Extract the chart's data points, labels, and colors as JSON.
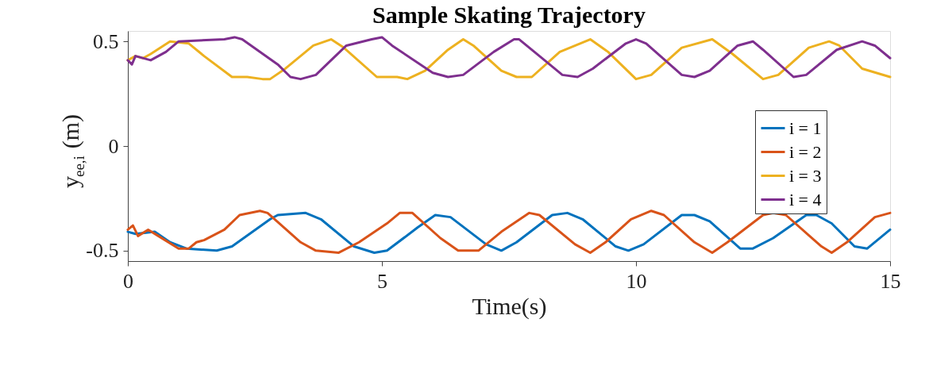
{
  "chart_data": {
    "type": "line",
    "title": "Sample Skating Trajectory",
    "xlabel": "Time(s)",
    "ylabel": "y$_{ee,i}$ (m)",
    "xlim": [
      0,
      15
    ],
    "xticks": [
      0,
      5,
      10,
      15
    ],
    "ylim": [
      -0.55,
      0.55
    ],
    "yticks": [
      -0.5,
      0,
      0.5
    ],
    "grid": false,
    "legend": "right",
    "line_style": "solid",
    "marker": "none",
    "series": [
      {
        "name": "i = 1",
        "color": "#0072bd",
        "x": [
          0,
          0.15,
          0.53,
          0.83,
          1.15,
          1.75,
          2.05,
          2.8,
          2.95,
          3.5,
          3.8,
          4.45,
          4.85,
          5.1,
          5.7,
          6.05,
          6.35,
          7.05,
          7.35,
          7.65,
          8.35,
          8.65,
          8.95,
          9.6,
          9.85,
          10.15,
          10.9,
          11.15,
          11.45,
          12.05,
          12.3,
          12.7,
          13.35,
          13.55,
          13.85,
          14.3,
          14.55,
          15
        ],
        "values": [
          -0.41,
          -0.42,
          -0.41,
          -0.46,
          -0.49,
          -0.5,
          -0.48,
          -0.35,
          -0.33,
          -0.32,
          -0.35,
          -0.48,
          -0.51,
          -0.5,
          -0.39,
          -0.33,
          -0.34,
          -0.47,
          -0.5,
          -0.46,
          -0.33,
          -0.32,
          -0.35,
          -0.48,
          -0.5,
          -0.47,
          -0.33,
          -0.33,
          -0.36,
          -0.49,
          -0.49,
          -0.44,
          -0.33,
          -0.33,
          -0.37,
          -0.48,
          -0.49,
          -0.4
        ]
      },
      {
        "name": "i = 2",
        "color": "#d95319",
        "x": [
          0,
          0.1,
          0.2,
          0.4,
          0.6,
          1.0,
          1.2,
          1.35,
          1.5,
          1.9,
          2.2,
          2.6,
          2.75,
          3.4,
          3.7,
          4.15,
          4.55,
          5.1,
          5.35,
          5.6,
          6.15,
          6.5,
          6.9,
          7.35,
          7.9,
          8.1,
          8.8,
          9.1,
          9.4,
          9.9,
          10.3,
          10.55,
          11.15,
          11.5,
          11.8,
          12.5,
          12.7,
          12.95,
          13.65,
          13.85,
          14.15,
          14.7,
          15
        ],
        "values": [
          -0.4,
          -0.38,
          -0.43,
          -0.4,
          -0.43,
          -0.49,
          -0.49,
          -0.46,
          -0.45,
          -0.4,
          -0.33,
          -0.31,
          -0.32,
          -0.46,
          -0.5,
          -0.51,
          -0.46,
          -0.37,
          -0.32,
          -0.32,
          -0.44,
          -0.5,
          -0.5,
          -0.41,
          -0.32,
          -0.33,
          -0.47,
          -0.51,
          -0.46,
          -0.35,
          -0.31,
          -0.33,
          -0.46,
          -0.51,
          -0.46,
          -0.33,
          -0.32,
          -0.33,
          -0.48,
          -0.51,
          -0.46,
          -0.34,
          -0.32
        ]
      },
      {
        "name": "i = 3",
        "color": "#edb120",
        "x": [
          0,
          0.15,
          0.3,
          0.45,
          0.83,
          1.2,
          1.5,
          2.05,
          2.35,
          2.65,
          2.8,
          3.1,
          3.65,
          4.0,
          4.25,
          4.9,
          5.3,
          5.5,
          5.85,
          6.3,
          6.6,
          6.8,
          7.35,
          7.65,
          7.95,
          8.5,
          9.1,
          9.45,
          10.0,
          10.3,
          10.9,
          11.5,
          11.9,
          12.5,
          12.8,
          13.4,
          13.8,
          14.0,
          14.45,
          15
        ],
        "values": [
          0.41,
          0.43,
          0.42,
          0.44,
          0.5,
          0.49,
          0.43,
          0.33,
          0.33,
          0.32,
          0.32,
          0.37,
          0.48,
          0.51,
          0.47,
          0.33,
          0.33,
          0.32,
          0.36,
          0.46,
          0.51,
          0.48,
          0.36,
          0.33,
          0.33,
          0.45,
          0.51,
          0.45,
          0.32,
          0.34,
          0.47,
          0.51,
          0.44,
          0.32,
          0.34,
          0.47,
          0.5,
          0.48,
          0.37,
          0.33
        ]
      },
      {
        "name": "i = 4",
        "color": "#7e2f8e",
        "x": [
          0,
          0.08,
          0.15,
          0.45,
          0.75,
          1.0,
          1.9,
          2.1,
          2.25,
          2.95,
          3.2,
          3.4,
          3.7,
          4.3,
          4.8,
          5.0,
          5.2,
          6.0,
          6.3,
          6.6,
          7.2,
          7.6,
          7.7,
          8.2,
          8.55,
          8.85,
          9.15,
          9.8,
          10.0,
          10.2,
          10.9,
          11.15,
          11.45,
          12.0,
          12.3,
          12.5,
          13.1,
          13.35,
          13.95,
          14.45,
          14.7,
          15
        ],
        "values": [
          0.41,
          0.39,
          0.43,
          0.41,
          0.45,
          0.5,
          0.51,
          0.52,
          0.51,
          0.39,
          0.33,
          0.32,
          0.34,
          0.48,
          0.51,
          0.52,
          0.48,
          0.35,
          0.33,
          0.34,
          0.45,
          0.51,
          0.51,
          0.41,
          0.34,
          0.33,
          0.37,
          0.49,
          0.51,
          0.49,
          0.34,
          0.33,
          0.36,
          0.48,
          0.5,
          0.46,
          0.33,
          0.34,
          0.46,
          0.5,
          0.48,
          0.42
        ]
      }
    ]
  }
}
